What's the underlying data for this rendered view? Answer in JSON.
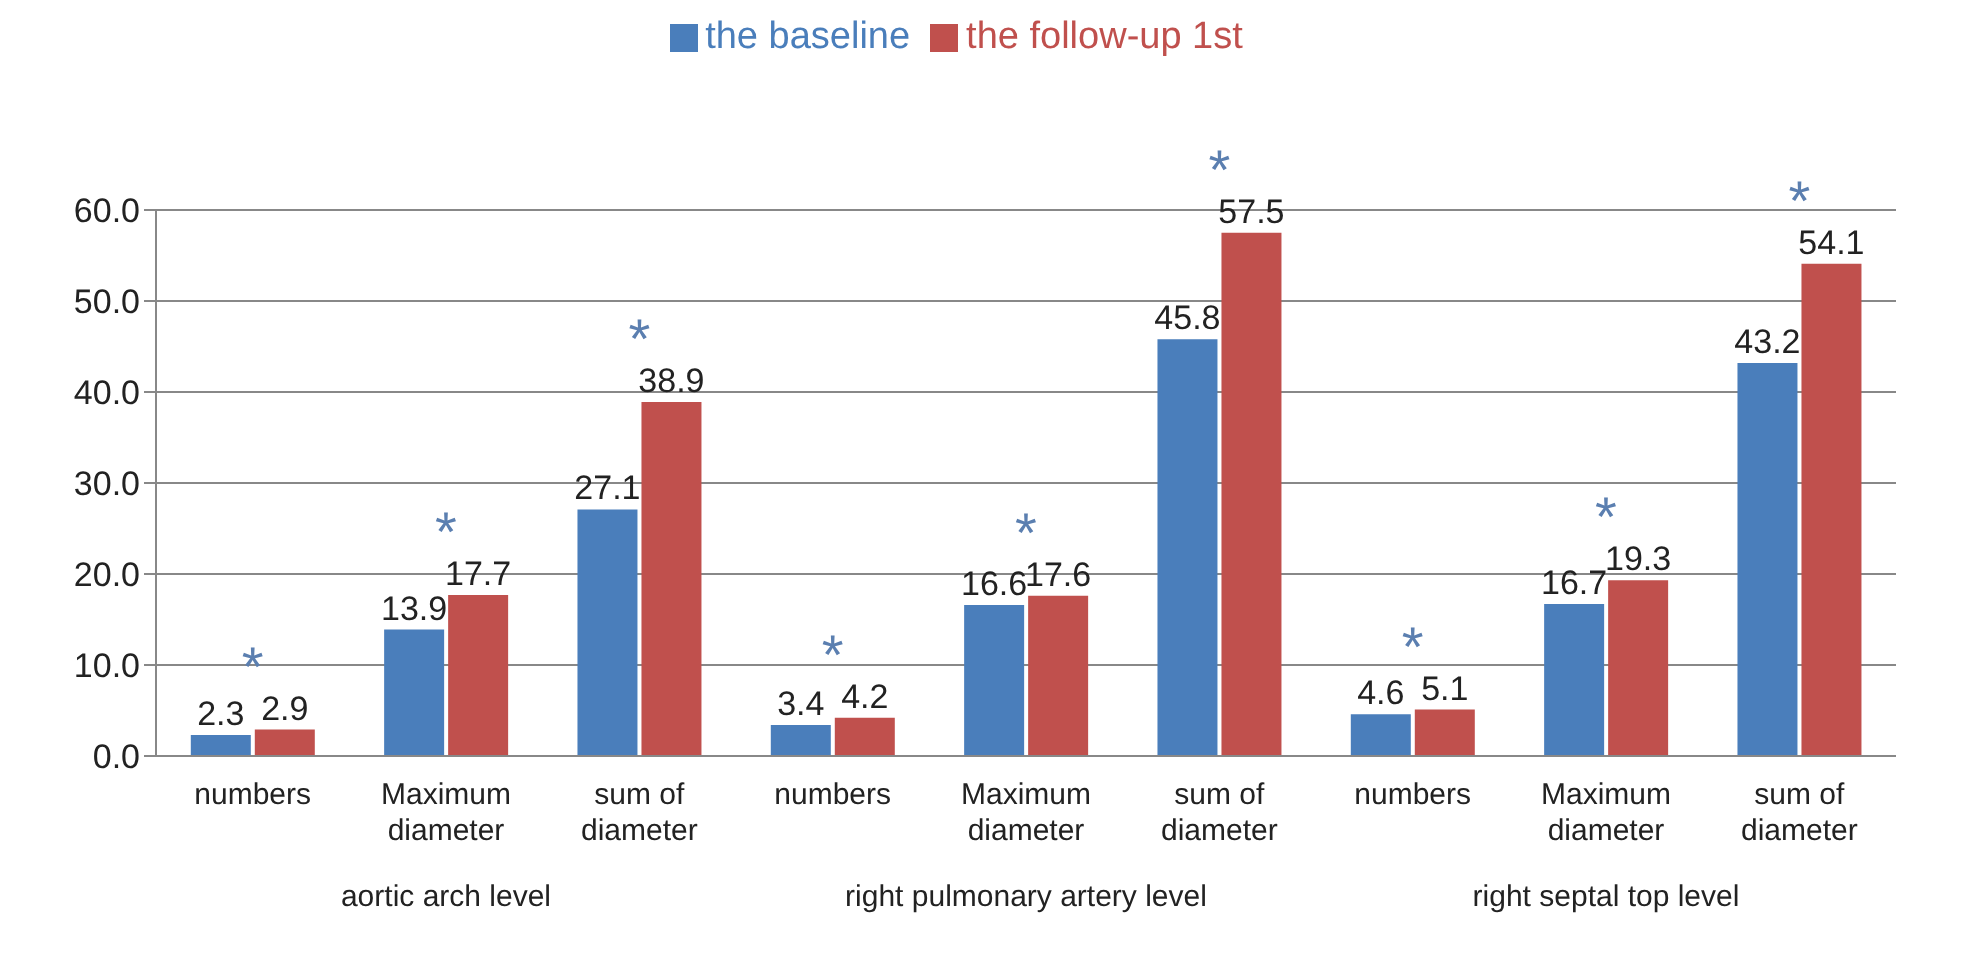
{
  "chart_data": {
    "type": "bar",
    "categories": [
      "numbers",
      "Maximum diameter",
      "sum of diameter",
      "numbers",
      "Maximum diameter",
      "sum of diameter",
      "numbers",
      "Maximum diameter",
      "sum of diameter"
    ],
    "series": [
      {
        "name": "the baseline",
        "color": "#4a7ebb",
        "values": [
          2.3,
          13.9,
          27.1,
          3.4,
          16.6,
          45.8,
          4.6,
          16.7,
          43.2
        ]
      },
      {
        "name": "the follow-up 1st",
        "color": "#c0504d",
        "values": [
          2.9,
          17.7,
          38.9,
          4.2,
          17.6,
          57.5,
          5.1,
          19.3,
          54.1
        ]
      }
    ],
    "ylim": [
      0,
      60
    ],
    "yticks": [
      {
        "value": 0,
        "label": "0.0"
      },
      {
        "value": 10,
        "label": "10.0"
      },
      {
        "value": 20,
        "label": "20.0"
      },
      {
        "value": 30,
        "label": "30.0"
      },
      {
        "value": 40,
        "label": "40.0"
      },
      {
        "value": 50,
        "label": "50.0"
      },
      {
        "value": 60,
        "label": "60.0"
      }
    ],
    "grid": "y",
    "legend": "top",
    "data_labels": true,
    "annotations": [
      "aortic arch level",
      "right pulmonary artery level",
      "right septal top level",
      "*",
      "*",
      "*",
      "*",
      "*",
      "*",
      "*",
      "*",
      "*"
    ]
  }
}
